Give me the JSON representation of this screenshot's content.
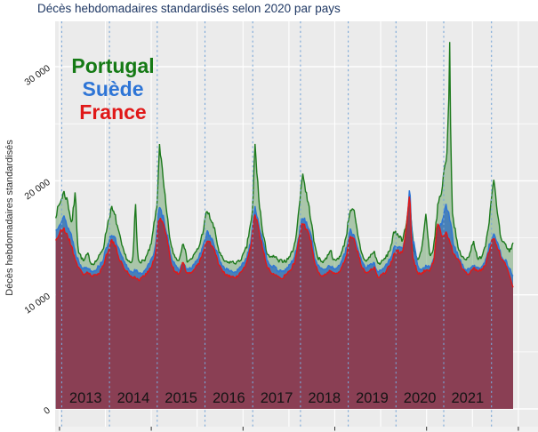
{
  "title": {
    "text": "Décès hebdomadaires standardisés selon 2020 par pays",
    "color": "#1F3864"
  },
  "y_axis": {
    "title": "Décès hebdomadaires standardisés",
    "tick_labels": [
      "0",
      "10 000",
      "20 000",
      "30 000"
    ],
    "tick_values": [
      0,
      10000,
      20000,
      30000
    ],
    "minor_tick_values": [
      5000,
      15000,
      25000
    ]
  },
  "x_axis": {
    "year_labels": [
      "2013",
      "2014",
      "2015",
      "2016",
      "2017",
      "2018",
      "2019",
      "2020",
      "2021"
    ],
    "dashed_gridline_years": [
      2013,
      2014,
      2015,
      2016,
      2017,
      2018,
      2019,
      2020,
      2021,
      2022
    ]
  },
  "legend": {
    "items": [
      {
        "label": "Portugal",
        "color": "#157A15"
      },
      {
        "label": "Suède",
        "color": "#2E75D6"
      },
      {
        "label": "France",
        "color": "#E01818"
      }
    ]
  },
  "chart_data": {
    "type": "area",
    "title": "Décès hebdomadaires standardisés selon 2020 par pays",
    "ylabel": "Décès hebdomadaires standardisés",
    "x_unit": "month",
    "start_year": 2012,
    "start_month": 11,
    "x_range_years": [
      2012.87,
      2022.46
    ],
    "ylim": [
      0,
      33900
    ],
    "grid": true,
    "legend_position": "inside-top-left",
    "series": [
      {
        "name": "Portugal",
        "line_color": "#1D7A1D",
        "fill_color": "rgba(90,154,90,0.45)",
        "values": [
          17000,
          18000,
          19000,
          18200,
          16200,
          19200,
          13600,
          12900,
          13600,
          12700,
          12900,
          13400,
          14200,
          16200,
          17600,
          16800,
          15200,
          13800,
          13100,
          12700,
          18900,
          13000,
          12900,
          13500,
          14400,
          17000,
          23600,
          20000,
          16800,
          14200,
          13300,
          13000,
          14800,
          13000,
          13100,
          13600,
          14200,
          15600,
          17400,
          16600,
          15600,
          13800,
          13100,
          12800,
          12900,
          12800,
          12900,
          13400,
          14200,
          16400,
          23500,
          18600,
          15400,
          13800,
          13200,
          13400,
          12900,
          13000,
          13000,
          13500,
          14300,
          17000,
          20800,
          18800,
          17000,
          14400,
          13200,
          12900,
          13200,
          14000,
          12900,
          13200,
          13800,
          15200,
          17600,
          17200,
          15000,
          13500,
          12900,
          13400,
          13800,
          12700,
          12900,
          13300,
          14000,
          15400,
          15400,
          14800,
          16000,
          18000,
          14000,
          12900,
          14000,
          17000,
          13200,
          14200,
          17800,
          19200,
          22000,
          32500,
          16500,
          14200,
          13400,
          13000,
          13600,
          14800,
          13000,
          13400,
          14400,
          16800,
          20400,
          17000,
          14600,
          14400,
          13800,
          14600
        ]
      },
      {
        "name": "Suède",
        "line_color": "#2E75D6",
        "fill_color": "rgba(30,100,190,0.70)",
        "values": [
          15600,
          16400,
          16800,
          16000,
          15200,
          13600,
          12800,
          12300,
          12400,
          12100,
          12200,
          12600,
          13200,
          14400,
          15400,
          14800,
          13800,
          13000,
          12400,
          12000,
          12200,
          11800,
          12000,
          12500,
          13000,
          14200,
          17600,
          16800,
          15400,
          13400,
          12500,
          12200,
          12800,
          12200,
          12300,
          12800,
          13300,
          14200,
          15600,
          15000,
          14200,
          13200,
          12500,
          12200,
          12100,
          12000,
          12200,
          12700,
          13300,
          14800,
          17800,
          16400,
          14600,
          13200,
          12600,
          12400,
          12100,
          12000,
          12300,
          12700,
          13300,
          15000,
          17000,
          16200,
          15600,
          13400,
          12500,
          12200,
          12400,
          12600,
          12200,
          12500,
          13000,
          14000,
          15600,
          15200,
          14000,
          12900,
          12400,
          12600,
          12800,
          12000,
          12200,
          12600,
          13100,
          14200,
          14200,
          14000,
          15000,
          19600,
          14500,
          12400,
          12200,
          12500,
          12400,
          13200,
          15800,
          16400,
          18000,
          16800,
          14400,
          13500,
          12700,
          12200,
          12200,
          12600,
          12300,
          12500,
          13000,
          14400,
          15500,
          14500,
          13400,
          13000,
          12400,
          11500
        ]
      },
      {
        "name": "France",
        "line_color": "#E01818",
        "fill_color": "rgba(141,60,80,0.96)",
        "values": [
          14800,
          15400,
          15800,
          15200,
          14200,
          13000,
          12200,
          11800,
          12000,
          11600,
          11700,
          12000,
          12600,
          13800,
          14800,
          14200,
          13200,
          12400,
          12000,
          11600,
          11500,
          11300,
          11600,
          12000,
          12400,
          13400,
          16800,
          16200,
          14800,
          12800,
          12000,
          11800,
          13000,
          11800,
          11900,
          12400,
          12800,
          13600,
          14800,
          14400,
          13800,
          12600,
          12000,
          11700,
          11600,
          11500,
          11700,
          12200,
          12800,
          14200,
          17200,
          15800,
          14000,
          12600,
          12000,
          11900,
          11600,
          11500,
          11800,
          12200,
          12800,
          14600,
          16400,
          15600,
          15000,
          12800,
          12000,
          11700,
          11800,
          12200,
          11800,
          12000,
          12500,
          13400,
          15200,
          14800,
          13600,
          12400,
          11900,
          12200,
          12400,
          11600,
          11700,
          12100,
          12600,
          13600,
          13800,
          13600,
          15500,
          19200,
          13000,
          11800,
          11900,
          12200,
          12100,
          13000,
          16400,
          15000,
          15500,
          14800,
          13600,
          13200,
          12400,
          11900,
          11900,
          12400,
          12000,
          12200,
          12600,
          14000,
          15100,
          14200,
          13200,
          12600,
          11800,
          10600
        ]
      }
    ]
  }
}
